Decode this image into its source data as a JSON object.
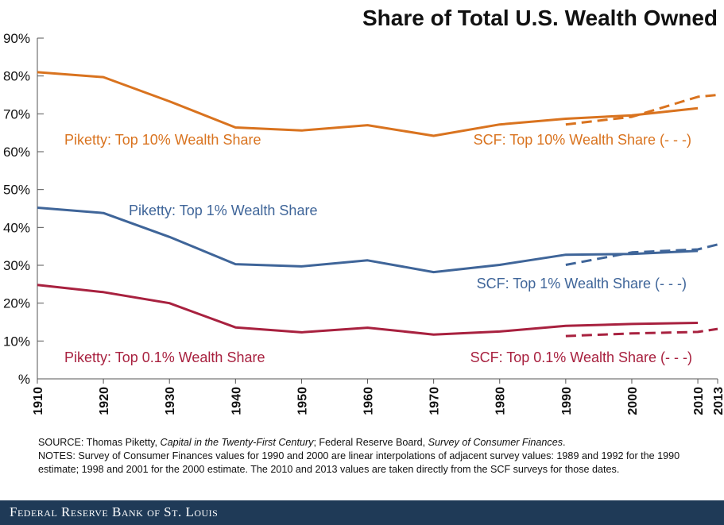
{
  "chart_data": {
    "type": "line",
    "title": "Share of Total U.S. Wealth Owned",
    "y_unit_label": "%",
    "ylim": [
      0,
      90
    ],
    "y_ticks": [
      10,
      20,
      30,
      40,
      50,
      60,
      70,
      80,
      90
    ],
    "y_tick_labels": [
      "10%",
      "20%",
      "30%",
      "40%",
      "50%",
      "60%",
      "70%",
      "80%",
      "90%"
    ],
    "x_ticks": [
      1910,
      1920,
      1930,
      1940,
      1950,
      1960,
      1970,
      1980,
      1990,
      2000,
      2010,
      2013
    ],
    "x_tick_labels": [
      "1910",
      "1920",
      "1930",
      "1940",
      "1950",
      "1960",
      "1970",
      "1980",
      "1990",
      "2000",
      "2010",
      "2013"
    ],
    "grid": false,
    "series": [
      {
        "name": "Piketty: Top 10% Wealth Share",
        "style": "solid",
        "color": "#d9731f",
        "x": [
          1910,
          1920,
          1930,
          1940,
          1950,
          1960,
          1970,
          1980,
          1990,
          2000,
          2010
        ],
        "values": [
          81,
          79.7,
          73.3,
          66.4,
          65.6,
          67,
          64.2,
          67.2,
          68.7,
          69.6,
          71.5
        ]
      },
      {
        "name": "SCF: Top 10% Wealth Share (- - -)",
        "style": "dashed",
        "color": "#d9731f",
        "x": [
          1990,
          2000,
          2010,
          2013
        ],
        "values": [
          67.2,
          69.2,
          74.5,
          75
        ]
      },
      {
        "name": "Piketty: Top 1% Wealth Share",
        "style": "solid",
        "color": "#3f6599",
        "x": [
          1910,
          1920,
          1930,
          1940,
          1950,
          1960,
          1970,
          1980,
          1990,
          2000,
          2010
        ],
        "values": [
          45.2,
          43.8,
          37.5,
          30.3,
          29.7,
          31.3,
          28.2,
          30.1,
          32.8,
          33,
          33.8
        ]
      },
      {
        "name": "SCF: Top 1% Wealth Share (- - -)",
        "style": "dashed",
        "color": "#3f6599",
        "x": [
          1990,
          2000,
          2010,
          2013
        ],
        "values": [
          30.1,
          33.4,
          34.2,
          35.5
        ]
      },
      {
        "name": "Piketty: Top 0.1% Wealth Share",
        "style": "solid",
        "color": "#a8213f",
        "x": [
          1910,
          1920,
          1930,
          1940,
          1950,
          1960,
          1970,
          1980,
          1990,
          2000,
          2010
        ],
        "values": [
          24.8,
          22.9,
          20,
          13.6,
          12.3,
          13.5,
          11.7,
          12.5,
          14,
          14.5,
          14.8
        ]
      },
      {
        "name": "SCF: Top 0.1% Wealth Share (- - -)",
        "style": "dashed",
        "color": "#a8213f",
        "x": [
          1990,
          2000,
          2010,
          2013
        ],
        "values": [
          11.3,
          12,
          12.4,
          13.2
        ]
      }
    ]
  },
  "notes": {
    "source_lead": "SOURCE: Thomas Piketty, ",
    "source_book": "Capital in the Twenty-First Century",
    "source_mid": "; Federal Reserve Board, ",
    "source_survey": "Survey of Consumer Finances",
    "source_end": ".",
    "notes_text": "NOTES: Survey of Consumer Finances values for 1990 and 2000 are linear interpolations of adjacent survey values: 1989 and 1992 for the 1990 estimate; 1998 and 2001 for the 2000 estimate. The 2010 and 2013 values are taken directly from the SCF surveys for those dates."
  },
  "footer": {
    "text": "Federal Reserve Bank of St. Louis"
  }
}
